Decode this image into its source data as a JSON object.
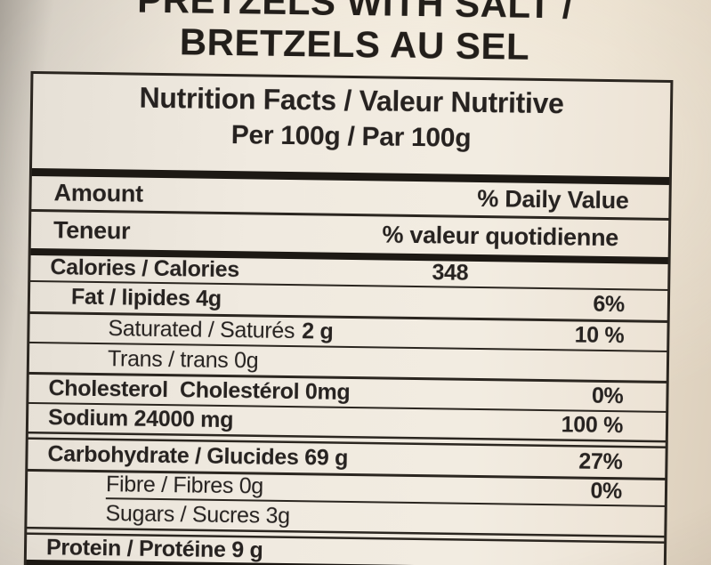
{
  "product": {
    "title_line1": "PRETZELS WITH SALT /",
    "title_line2": "BRETZELS AU SEL"
  },
  "label": {
    "title": "Nutrition Facts / Valeur Nutritive",
    "serving": "Per 100g / Par 100g",
    "header": {
      "amount_en": "Amount",
      "daily_value_en": "% Daily Value",
      "amount_fr": "Teneur",
      "daily_value_fr": "% valeur quotidienne"
    },
    "rows": [
      {
        "text": "Calories / Calories",
        "bold_part": "",
        "value": "348",
        "percent": ""
      },
      {
        "text": "Fat / lipides 4g",
        "bold_part": "",
        "percent": "6%"
      },
      {
        "text": "Saturated / Saturés",
        "bold_part": "2 g",
        "percent": "10 %"
      },
      {
        "text": "Trans / trans 0g",
        "bold_part": "",
        "percent": ""
      },
      {
        "text": "Cholesterol  Cholestérol 0mg",
        "bold_part": "",
        "percent": "0%"
      },
      {
        "text": "Sodium 24000 mg",
        "bold_part": "",
        "percent": "100 %"
      },
      {
        "text": "Carbohydrate / Glucides 69 g",
        "bold_part": "",
        "percent": "27%"
      },
      {
        "text": "Fibre / Fibres 0g",
        "bold_part": "",
        "percent": "0%"
      },
      {
        "text": "Sugars / Sucres 3g",
        "bold_part": "",
        "percent": ""
      },
      {
        "text": "Protein / Protéine 9 g",
        "bold_part": "",
        "percent": ""
      }
    ],
    "colors": {
      "ink": "#262220",
      "paper": "#f0eae0",
      "rule": "#2b2620"
    }
  }
}
